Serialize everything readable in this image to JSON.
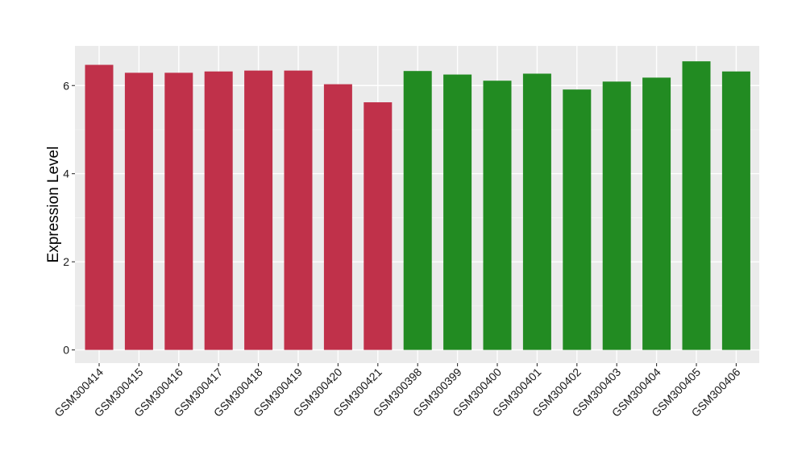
{
  "chart_data": {
    "type": "bar",
    "ylabel": "Expression Level",
    "xlabel": "",
    "ylim": [
      -0.3,
      6.9
    ],
    "yticks": [
      0,
      2,
      4,
      6
    ],
    "grid": true,
    "panel_background": "#ebebeb",
    "categories": [
      "GSM300414",
      "GSM300415",
      "GSM300416",
      "GSM300417",
      "GSM300418",
      "GSM300419",
      "GSM300420",
      "GSM300421",
      "GSM300398",
      "GSM300399",
      "GSM300400",
      "GSM300401",
      "GSM300402",
      "GSM300403",
      "GSM300404",
      "GSM300405",
      "GSM300406"
    ],
    "values": [
      6.47,
      6.29,
      6.29,
      6.32,
      6.34,
      6.34,
      6.03,
      5.62,
      6.33,
      6.25,
      6.11,
      6.27,
      5.91,
      6.09,
      6.18,
      6.55,
      6.32
    ],
    "colors": [
      "#c0314a",
      "#c0314a",
      "#c0314a",
      "#c0314a",
      "#c0314a",
      "#c0314a",
      "#c0314a",
      "#c0314a",
      "#228b22",
      "#228b22",
      "#228b22",
      "#228b22",
      "#228b22",
      "#228b22",
      "#228b22",
      "#228b22",
      "#228b22"
    ]
  }
}
